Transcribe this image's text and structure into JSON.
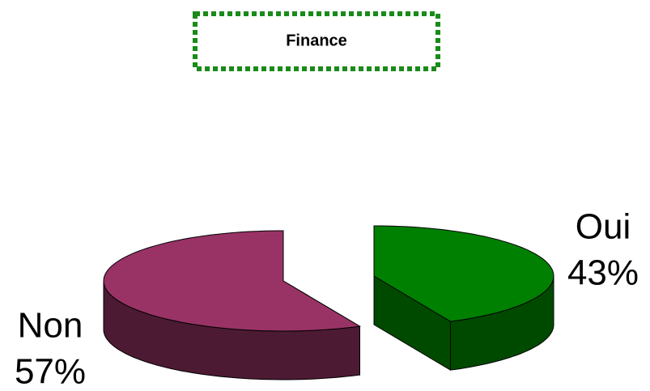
{
  "chart_data": {
    "type": "pie",
    "title": "Finance",
    "categories": [
      "Oui",
      "Non"
    ],
    "values": [
      43,
      57
    ],
    "value_labels": [
      "43%",
      "57%"
    ],
    "colors": [
      "#008000",
      "#993366"
    ],
    "side_colors": [
      "#004a00",
      "#4d1a33"
    ]
  }
}
